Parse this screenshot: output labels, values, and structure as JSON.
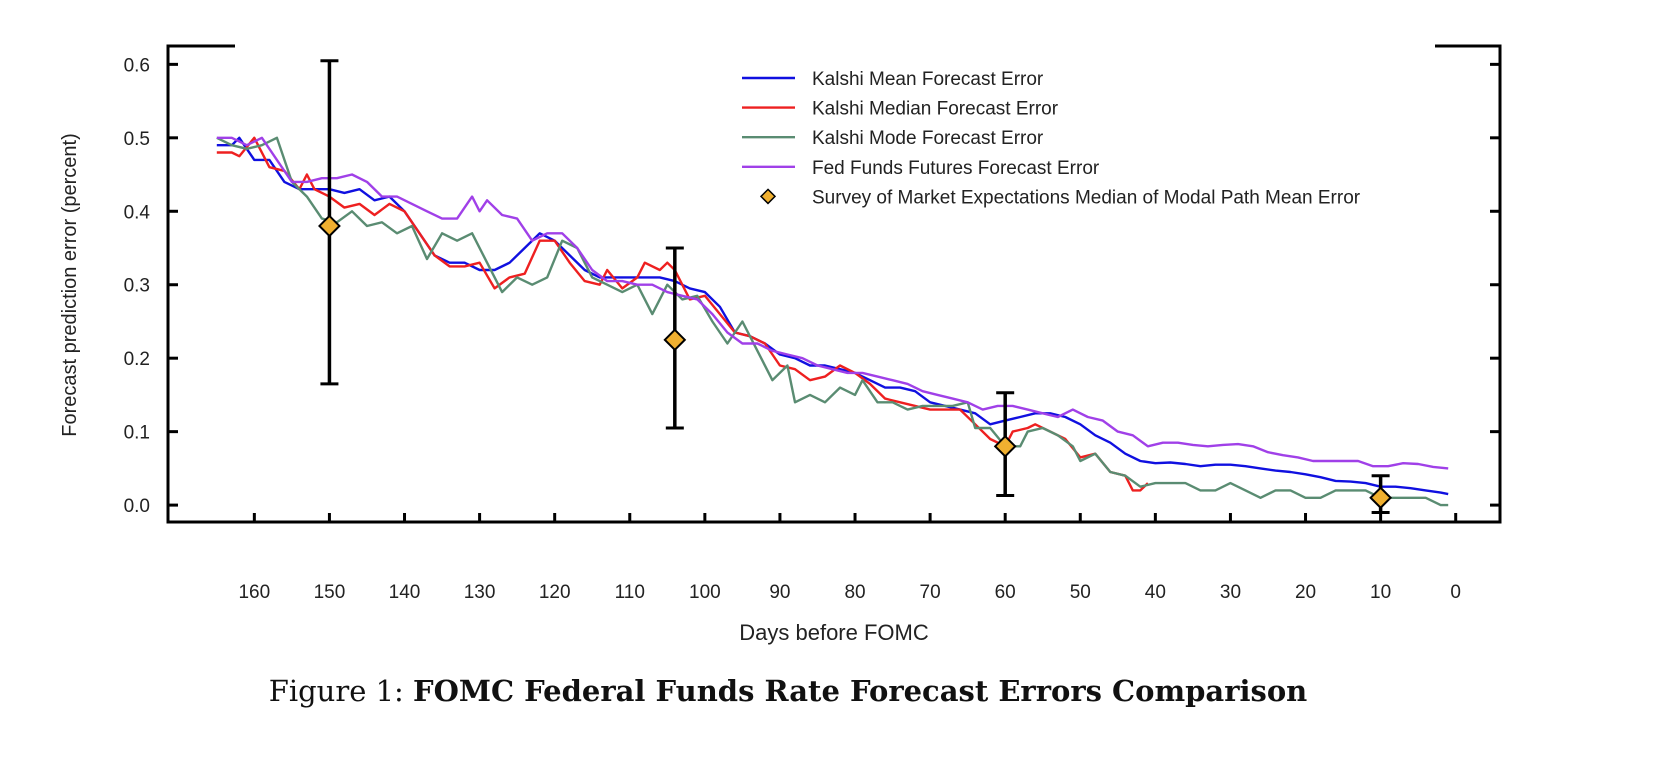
{
  "chart_data": {
    "type": "line",
    "xlabel": "Days before FOMC",
    "ylabel": "Forecast prediction error (percent)",
    "x_ticks": [
      160,
      150,
      140,
      130,
      120,
      110,
      100,
      90,
      80,
      70,
      60,
      50,
      40,
      30,
      20,
      10,
      0
    ],
    "y_ticks": [
      "0.0",
      "0.1",
      "0.2",
      "0.3",
      "0.4",
      "0.5",
      "0.6"
    ],
    "xlim": [
      171.5,
      -5.9
    ],
    "ylim": [
      -0.023,
      0.625
    ],
    "x_reversed": true,
    "legend_placement": "top-right",
    "grid": false,
    "series": [
      {
        "name": "Kalshi Mean Forecast Error",
        "color": "#1010e0",
        "x": [
          165,
          163,
          162,
          160,
          158,
          156,
          154,
          152,
          150,
          148,
          146,
          144,
          142,
          140,
          138,
          136,
          134,
          132,
          130,
          128,
          126,
          124,
          122,
          120,
          118,
          116,
          114,
          112,
          110,
          108,
          106,
          104,
          102,
          100,
          98,
          96,
          94,
          92,
          90,
          88,
          86,
          84,
          82,
          80,
          78,
          76,
          74,
          72,
          70,
          68,
          66,
          64,
          62,
          60,
          58,
          56,
          54,
          52,
          50,
          48,
          46,
          44,
          42,
          40,
          38,
          36,
          34,
          32,
          30,
          28,
          26,
          24,
          22,
          20,
          18,
          16,
          14,
          12,
          10,
          8,
          6,
          4,
          2,
          1
        ],
        "y": [
          0.49,
          0.49,
          0.5,
          0.47,
          0.47,
          0.44,
          0.43,
          0.43,
          0.43,
          0.425,
          0.43,
          0.415,
          0.42,
          0.4,
          0.37,
          0.34,
          0.33,
          0.33,
          0.32,
          0.32,
          0.33,
          0.35,
          0.37,
          0.36,
          0.34,
          0.32,
          0.31,
          0.31,
          0.31,
          0.31,
          0.31,
          0.305,
          0.295,
          0.29,
          0.27,
          0.235,
          0.23,
          0.22,
          0.205,
          0.2,
          0.19,
          0.19,
          0.185,
          0.18,
          0.17,
          0.16,
          0.16,
          0.155,
          0.14,
          0.135,
          0.13,
          0.125,
          0.11,
          0.115,
          0.12,
          0.125,
          0.125,
          0.12,
          0.11,
          0.095,
          0.085,
          0.07,
          0.06,
          0.057,
          0.058,
          0.056,
          0.053,
          0.055,
          0.055,
          0.053,
          0.05,
          0.047,
          0.045,
          0.042,
          0.038,
          0.033,
          0.032,
          0.03,
          0.025,
          0.025,
          0.023,
          0.02,
          0.017,
          0.015
        ]
      },
      {
        "name": "Kalshi Median Forecast Error",
        "color": "#ee2020",
        "x": [
          165,
          163,
          162,
          160,
          158,
          156,
          154,
          153,
          152,
          150,
          148,
          146,
          144,
          142,
          140,
          138,
          136,
          134,
          132,
          130,
          128,
          126,
          124,
          122,
          120,
          118,
          116,
          114,
          113,
          111,
          109,
          108,
          106,
          105,
          104,
          102,
          100,
          98,
          96,
          94,
          92,
          90,
          88,
          86,
          84,
          82,
          80,
          78,
          76,
          74,
          72,
          70,
          68,
          66,
          64,
          62,
          60,
          59,
          57,
          56,
          54,
          52,
          50,
          48,
          46,
          44,
          43,
          42,
          41
        ],
        "y": [
          0.48,
          0.48,
          0.475,
          0.5,
          0.46,
          0.455,
          0.43,
          0.45,
          0.43,
          0.42,
          0.405,
          0.41,
          0.395,
          0.41,
          0.4,
          0.37,
          0.34,
          0.325,
          0.325,
          0.33,
          0.295,
          0.31,
          0.315,
          0.36,
          0.36,
          0.33,
          0.305,
          0.3,
          0.32,
          0.295,
          0.31,
          0.33,
          0.32,
          0.33,
          0.32,
          0.28,
          0.285,
          0.26,
          0.235,
          0.23,
          0.22,
          0.19,
          0.185,
          0.17,
          0.175,
          0.19,
          0.18,
          0.165,
          0.145,
          0.14,
          0.135,
          0.13,
          0.13,
          0.13,
          0.11,
          0.09,
          0.08,
          0.1,
          0.105,
          0.11,
          0.1,
          0.09,
          0.065,
          0.07,
          0.045,
          0.04,
          0.02,
          0.02,
          0.03
        ]
      },
      {
        "name": "Kalshi Mode Forecast Error",
        "color": "#5a8c72",
        "x": [
          165,
          163,
          161,
          159,
          157,
          155,
          153,
          151,
          149,
          147,
          145,
          143,
          141,
          139,
          137,
          135,
          133,
          131,
          129,
          127,
          125,
          123,
          121,
          119,
          117,
          115,
          113,
          111,
          109,
          107,
          105,
          103,
          101,
          99,
          97,
          95,
          93,
          91,
          89,
          88,
          86,
          84,
          82,
          80,
          79,
          77,
          75,
          73,
          71,
          69,
          67,
          65,
          64,
          62,
          60,
          58,
          57,
          55,
          53,
          51,
          50,
          48,
          46,
          44,
          42,
          40,
          38,
          36,
          34,
          32,
          30,
          28,
          26,
          24,
          22,
          20,
          18,
          16,
          14,
          12,
          10,
          8,
          6,
          4,
          2,
          1
        ],
        "y": [
          0.5,
          0.49,
          0.485,
          0.49,
          0.5,
          0.44,
          0.42,
          0.39,
          0.385,
          0.4,
          0.38,
          0.385,
          0.37,
          0.38,
          0.335,
          0.37,
          0.36,
          0.37,
          0.33,
          0.29,
          0.31,
          0.3,
          0.31,
          0.36,
          0.35,
          0.31,
          0.3,
          0.29,
          0.3,
          0.26,
          0.3,
          0.28,
          0.285,
          0.25,
          0.22,
          0.25,
          0.21,
          0.17,
          0.19,
          0.14,
          0.15,
          0.14,
          0.16,
          0.15,
          0.17,
          0.14,
          0.14,
          0.13,
          0.135,
          0.135,
          0.135,
          0.14,
          0.105,
          0.105,
          0.08,
          0.08,
          0.1,
          0.105,
          0.095,
          0.08,
          0.06,
          0.07,
          0.045,
          0.04,
          0.025,
          0.03,
          0.03,
          0.03,
          0.02,
          0.02,
          0.03,
          0.02,
          0.01,
          0.02,
          0.02,
          0.01,
          0.01,
          0.02,
          0.02,
          0.02,
          0.01,
          0.01,
          0.01,
          0.01,
          0.0,
          0.0
        ]
      },
      {
        "name": "Fed Funds Futures Forecast Error",
        "color": "#a040e8",
        "x": [
          165,
          163,
          161,
          159,
          157,
          155,
          153,
          151,
          149,
          147,
          145,
          143,
          141,
          139,
          137,
          135,
          133,
          131,
          130,
          129,
          127,
          125,
          123,
          121,
          119,
          117,
          115,
          113,
          111,
          109,
          107,
          105,
          103,
          101,
          99,
          97,
          95,
          93,
          91,
          89,
          87,
          85,
          83,
          81,
          79,
          77,
          75,
          73,
          71,
          69,
          67,
          65,
          63,
          61,
          59,
          57,
          55,
          53,
          51,
          49,
          47,
          45,
          43,
          41,
          39,
          37,
          35,
          33,
          31,
          29,
          27,
          25,
          23,
          21,
          19,
          17,
          15,
          13,
          11,
          9,
          7,
          5,
          3,
          1
        ],
        "y": [
          0.5,
          0.5,
          0.49,
          0.5,
          0.47,
          0.44,
          0.44,
          0.445,
          0.445,
          0.45,
          0.44,
          0.42,
          0.42,
          0.41,
          0.4,
          0.39,
          0.39,
          0.42,
          0.4,
          0.415,
          0.395,
          0.39,
          0.36,
          0.37,
          0.37,
          0.35,
          0.32,
          0.305,
          0.305,
          0.3,
          0.3,
          0.29,
          0.285,
          0.28,
          0.26,
          0.235,
          0.22,
          0.22,
          0.21,
          0.205,
          0.2,
          0.19,
          0.185,
          0.18,
          0.18,
          0.175,
          0.17,
          0.165,
          0.155,
          0.15,
          0.145,
          0.14,
          0.13,
          0.135,
          0.135,
          0.13,
          0.125,
          0.12,
          0.13,
          0.12,
          0.115,
          0.1,
          0.095,
          0.08,
          0.085,
          0.085,
          0.082,
          0.08,
          0.082,
          0.083,
          0.08,
          0.072,
          0.068,
          0.065,
          0.06,
          0.06,
          0.06,
          0.06,
          0.053,
          0.053,
          0.057,
          0.056,
          0.052,
          0.05
        ]
      }
    ],
    "points": {
      "name": "Survey of Market Expectations Median of Modal Path Mean Error",
      "color": "#f0b030",
      "marker": "diamond",
      "x": [
        150,
        104,
        60,
        10
      ],
      "y": [
        0.38,
        0.225,
        0.08,
        0.01
      ],
      "err_low": [
        0.165,
        0.105,
        0.013,
        -0.01
      ],
      "err_high": [
        0.605,
        0.35,
        0.153,
        0.04
      ]
    }
  },
  "caption": {
    "prefix": "Figure 1:",
    "title": "FOMC Federal Funds Rate Forecast Errors Comparison"
  }
}
